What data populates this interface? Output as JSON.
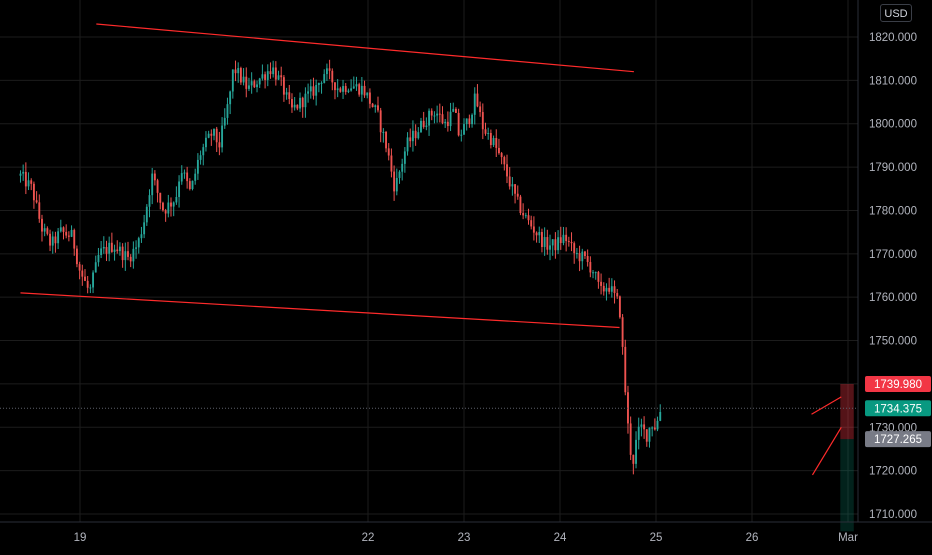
{
  "currency_badge": "USD",
  "colors": {
    "background": "#000000",
    "grid": "#1c1c1c",
    "up": "#26a69a",
    "down": "#ef5350",
    "trendline": "#ff2b2b",
    "axis_text": "#b2b5be"
  },
  "chart_data": {
    "type": "candlestick",
    "title": "",
    "xlabel": "",
    "ylabel": "",
    "ylim": [
      1706,
      1824
    ],
    "y_ticks": [
      "1710.000",
      "1720.000",
      "1730.000",
      "1740.000",
      "1750.000",
      "1760.000",
      "1770.000",
      "1780.000",
      "1790.000",
      "1800.000",
      "1810.000",
      "1820.000"
    ],
    "x_ticks": [
      {
        "label": "19",
        "day": 19
      },
      {
        "label": "22",
        "day": 22
      },
      {
        "label": "23",
        "day": 23
      },
      {
        "label": "24",
        "day": 24
      },
      {
        "label": "25",
        "day": 25
      },
      {
        "label": "26",
        "day": 26
      },
      {
        "label": "Mar",
        "day": 27
      }
    ],
    "xlim": [
      18.38,
      27.13
    ],
    "price_path": [
      [
        18.38,
        1788
      ],
      [
        18.5,
        1785
      ],
      [
        18.6,
        1776
      ],
      [
        18.7,
        1772
      ],
      [
        18.8,
        1775
      ],
      [
        18.92,
        1774
      ],
      [
        19.0,
        1766
      ],
      [
        19.1,
        1761
      ],
      [
        19.2,
        1770
      ],
      [
        19.35,
        1772
      ],
      [
        19.5,
        1769
      ],
      [
        19.6,
        1772
      ],
      [
        19.67,
        1778
      ],
      [
        19.75,
        1788
      ],
      [
        19.87,
        1780
      ],
      [
        20.0,
        1783
      ],
      [
        20.05,
        1790
      ],
      [
        20.15,
        1784
      ],
      [
        20.25,
        1793
      ],
      [
        20.38,
        1798
      ],
      [
        20.45,
        1795
      ],
      [
        20.55,
        1805
      ],
      [
        20.6,
        1813
      ],
      [
        20.75,
        1808
      ],
      [
        20.85,
        1810
      ],
      [
        21.0,
        1813
      ],
      [
        21.1,
        1809
      ],
      [
        21.2,
        1803
      ],
      [
        21.35,
        1806
      ],
      [
        21.45,
        1808
      ],
      [
        21.55,
        1812
      ],
      [
        21.7,
        1808
      ],
      [
        21.8,
        1809
      ],
      [
        21.95,
        1808
      ],
      [
        22.1,
        1802
      ],
      [
        22.2,
        1794
      ],
      [
        22.28,
        1785
      ],
      [
        22.4,
        1795
      ],
      [
        22.5,
        1798
      ],
      [
        22.6,
        1801
      ],
      [
        22.7,
        1803
      ],
      [
        22.8,
        1800
      ],
      [
        22.9,
        1803
      ],
      [
        22.95,
        1797
      ],
      [
        23.05,
        1801
      ],
      [
        23.12,
        1806
      ],
      [
        23.2,
        1799
      ],
      [
        23.3,
        1796
      ],
      [
        23.38,
        1792
      ],
      [
        23.45,
        1788
      ],
      [
        23.55,
        1782
      ],
      [
        23.65,
        1778
      ],
      [
        23.75,
        1775
      ],
      [
        23.85,
        1772
      ],
      [
        23.95,
        1772
      ],
      [
        24.05,
        1774
      ],
      [
        24.15,
        1770
      ],
      [
        24.25,
        1769
      ],
      [
        24.35,
        1766
      ],
      [
        24.42,
        1761
      ],
      [
        24.5,
        1763
      ],
      [
        24.57,
        1760
      ],
      [
        24.62,
        1758
      ],
      [
        24.66,
        1745
      ],
      [
        24.7,
        1732
      ],
      [
        24.73,
        1725
      ],
      [
        24.77,
        1722
      ],
      [
        24.8,
        1728
      ],
      [
        24.85,
        1730
      ],
      [
        24.9,
        1728
      ],
      [
        24.95,
        1731
      ],
      [
        25.0,
        1730
      ],
      [
        25.05,
        1734.375
      ]
    ],
    "last_price": "1734.375",
    "price_labels": [
      {
        "text": "1739.980",
        "value": 1739.98,
        "color": "#f23645"
      },
      {
        "text": "1734.375",
        "value": 1734.375,
        "color": "#089981"
      },
      {
        "text": "1727.265",
        "value": 1727.265,
        "color": "#787b86"
      }
    ],
    "trendlines": [
      {
        "x1": 19.17,
        "y1": 1823,
        "x2": 24.77,
        "y2": 1812
      },
      {
        "x1": 18.38,
        "y1": 1761,
        "x2": 24.62,
        "y2": 1753
      },
      {
        "x1": 26.62,
        "y1": 1733,
        "x2": 26.93,
        "y2": 1737
      },
      {
        "x1": 26.63,
        "y1": 1719,
        "x2": 26.93,
        "y2": 1730
      }
    ],
    "position_zones": {
      "x_start": 26.92,
      "x_end": 27.06,
      "stop": 1739.98,
      "entry": 1727.265,
      "target": 1706
    }
  }
}
